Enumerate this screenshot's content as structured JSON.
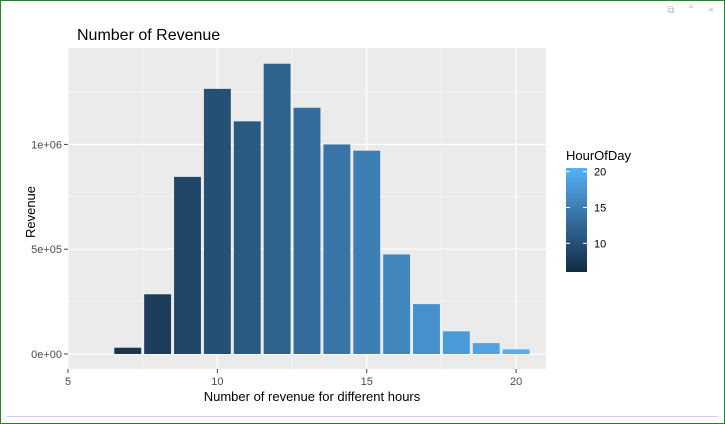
{
  "window": {
    "controls": [
      {
        "name": "restore-icon",
        "glyph": "⧉"
      },
      {
        "name": "collapse-icon",
        "glyph": "⌃"
      },
      {
        "name": "close-icon",
        "glyph": "×"
      }
    ]
  },
  "chart_data": {
    "type": "bar",
    "title": "Number of Revenue",
    "xlabel": "Number of revenue for different hours",
    "ylabel": "Revenue",
    "x": [
      7,
      8,
      9,
      10,
      11,
      12,
      13,
      14,
      15,
      16,
      17,
      18,
      19,
      20
    ],
    "values": [
      30000,
      285000,
      845000,
      1265000,
      1110000,
      1385000,
      1175000,
      1000000,
      970000,
      475000,
      238000,
      108000,
      52000,
      22000
    ],
    "xlim": [
      5,
      21
    ],
    "ylim": [
      0,
      1460000
    ],
    "xticks": [
      5,
      10,
      15,
      20
    ],
    "xtick_labels": [
      "5",
      "10",
      "15",
      "20"
    ],
    "yticks": [
      0,
      500000,
      1000000
    ],
    "ytick_labels": [
      "0e+00",
      "5e+05",
      "1e+06"
    ],
    "grid": true,
    "panel_background": "#ebebeb",
    "legend": {
      "title": "HourOfDay",
      "position": "right",
      "range": [
        6,
        20.5
      ],
      "ticks": [
        10,
        15,
        20
      ],
      "tick_labels": [
        "10",
        "15",
        "20"
      ],
      "low_color": "#132b43",
      "high_color": "#56b1f7"
    }
  }
}
